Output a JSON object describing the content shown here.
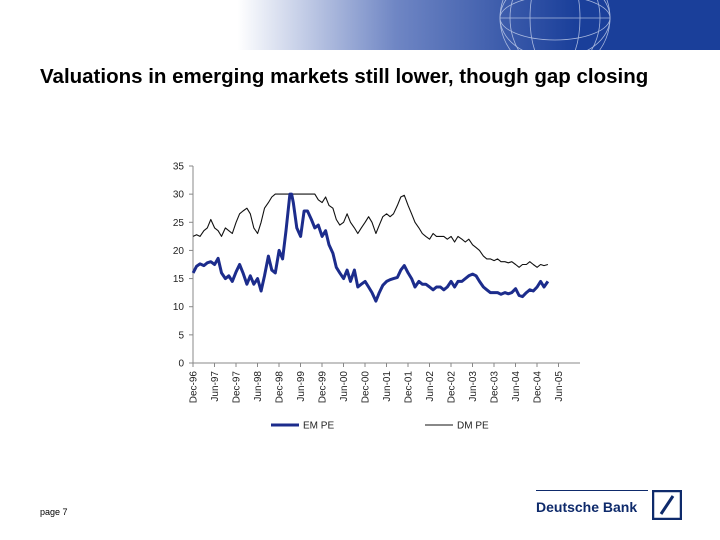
{
  "header": {
    "title": "Valuations in emerging markets still lower, though gap closing",
    "banner_color": "#1a3f9a"
  },
  "footer": {
    "page_label": "page 7",
    "brand": "Deutsche Bank",
    "logo_icon": "deutsche-bank-slash-logo"
  },
  "chart_data": {
    "type": "line",
    "title": "",
    "xlabel": "",
    "ylabel": "",
    "ylim": [
      0,
      35
    ],
    "yticks": [
      0,
      5,
      10,
      15,
      20,
      25,
      30,
      35
    ],
    "xlim": [
      1996.917,
      2005.917
    ],
    "xticks": [
      {
        "label": "Dec-96",
        "x": 1996.917
      },
      {
        "label": "Jun-97",
        "x": 1997.417
      },
      {
        "label": "Dec-97",
        "x": 1997.917
      },
      {
        "label": "Jun-98",
        "x": 1998.417
      },
      {
        "label": "Dec-98",
        "x": 1998.917
      },
      {
        "label": "Jun-99",
        "x": 1999.417
      },
      {
        "label": "Dec-99",
        "x": 1999.917
      },
      {
        "label": "Jun-00",
        "x": 2000.417
      },
      {
        "label": "Dec-00",
        "x": 2000.917
      },
      {
        "label": "Jun-01",
        "x": 2001.417
      },
      {
        "label": "Dec-01",
        "x": 2001.917
      },
      {
        "label": "Jun-02",
        "x": 2002.417
      },
      {
        "label": "Dec-02",
        "x": 2002.917
      },
      {
        "label": "Jun-03",
        "x": 2003.417
      },
      {
        "label": "Dec-03",
        "x": 2003.917
      },
      {
        "label": "Jun-04",
        "x": 2004.417
      },
      {
        "label": "Dec-04",
        "x": 2004.917
      },
      {
        "label": "Jun-05",
        "x": 2005.417
      }
    ],
    "grid": false,
    "legend_position": "bottom",
    "series": [
      {
        "name": "EM PE",
        "color": "#1c2c8c",
        "points": [
          [
            1996.92,
            16.0
          ],
          [
            1997.0,
            17.2
          ],
          [
            1997.08,
            17.6
          ],
          [
            1997.17,
            17.3
          ],
          [
            1997.25,
            17.8
          ],
          [
            1997.33,
            18.0
          ],
          [
            1997.42,
            17.5
          ],
          [
            1997.5,
            18.6
          ],
          [
            1997.58,
            16.0
          ],
          [
            1997.67,
            15.0
          ],
          [
            1997.75,
            15.5
          ],
          [
            1997.83,
            14.5
          ],
          [
            1997.92,
            16.2
          ],
          [
            1998.0,
            17.5
          ],
          [
            1998.08,
            16.0
          ],
          [
            1998.17,
            14.0
          ],
          [
            1998.25,
            15.5
          ],
          [
            1998.33,
            14.0
          ],
          [
            1998.42,
            15.0
          ],
          [
            1998.5,
            12.8
          ],
          [
            1998.58,
            15.5
          ],
          [
            1998.67,
            19.0
          ],
          [
            1998.75,
            16.5
          ],
          [
            1998.83,
            16.0
          ],
          [
            1998.92,
            20.0
          ],
          [
            1999.0,
            18.5
          ],
          [
            1999.08,
            23.5
          ],
          [
            1999.17,
            30.0
          ],
          [
            1999.21,
            30.0
          ],
          [
            1999.25,
            28.5
          ],
          [
            1999.33,
            24.0
          ],
          [
            1999.42,
            22.5
          ],
          [
            1999.5,
            27.0
          ],
          [
            1999.58,
            27.0
          ],
          [
            1999.67,
            25.5
          ],
          [
            1999.75,
            24.0
          ],
          [
            1999.83,
            24.5
          ],
          [
            1999.92,
            22.5
          ],
          [
            2000.0,
            23.5
          ],
          [
            2000.08,
            21.0
          ],
          [
            2000.17,
            19.5
          ],
          [
            2000.25,
            17.0
          ],
          [
            2000.33,
            16.0
          ],
          [
            2000.42,
            15.0
          ],
          [
            2000.5,
            16.5
          ],
          [
            2000.58,
            14.5
          ],
          [
            2000.67,
            16.5
          ],
          [
            2000.75,
            13.5
          ],
          [
            2000.83,
            14.0
          ],
          [
            2000.92,
            14.5
          ],
          [
            2001.0,
            13.5
          ],
          [
            2001.08,
            12.5
          ],
          [
            2001.17,
            11.0
          ],
          [
            2001.25,
            12.5
          ],
          [
            2001.33,
            13.8
          ],
          [
            2001.42,
            14.5
          ],
          [
            2001.5,
            14.8
          ],
          [
            2001.58,
            15.0
          ],
          [
            2001.67,
            15.2
          ],
          [
            2001.75,
            16.5
          ],
          [
            2001.83,
            17.3
          ],
          [
            2001.92,
            16.0
          ],
          [
            2002.0,
            15.0
          ],
          [
            2002.08,
            13.5
          ],
          [
            2002.17,
            14.5
          ],
          [
            2002.25,
            14.0
          ],
          [
            2002.33,
            14.0
          ],
          [
            2002.42,
            13.5
          ],
          [
            2002.5,
            13.0
          ],
          [
            2002.58,
            13.5
          ],
          [
            2002.67,
            13.5
          ],
          [
            2002.75,
            13.0
          ],
          [
            2002.83,
            13.5
          ],
          [
            2002.92,
            14.5
          ],
          [
            2003.0,
            13.5
          ],
          [
            2003.08,
            14.5
          ],
          [
            2003.17,
            14.5
          ],
          [
            2003.25,
            15.0
          ],
          [
            2003.33,
            15.5
          ],
          [
            2003.42,
            15.8
          ],
          [
            2003.5,
            15.5
          ],
          [
            2003.58,
            14.5
          ],
          [
            2003.67,
            13.5
          ],
          [
            2003.75,
            13.0
          ],
          [
            2003.83,
            12.5
          ],
          [
            2003.92,
            12.5
          ],
          [
            2004.0,
            12.5
          ],
          [
            2004.08,
            12.2
          ],
          [
            2004.17,
            12.5
          ],
          [
            2004.25,
            12.3
          ],
          [
            2004.33,
            12.5
          ],
          [
            2004.42,
            13.2
          ],
          [
            2004.5,
            12.0
          ],
          [
            2004.58,
            11.8
          ],
          [
            2004.67,
            12.5
          ],
          [
            2004.75,
            13.0
          ],
          [
            2004.83,
            12.8
          ],
          [
            2004.92,
            13.5
          ],
          [
            2005.0,
            14.5
          ],
          [
            2005.08,
            13.5
          ],
          [
            2005.17,
            14.5
          ]
        ]
      },
      {
        "name": "DM PE",
        "color": "#111111",
        "points": [
          [
            1996.92,
            22.5
          ],
          [
            1997.0,
            22.8
          ],
          [
            1997.08,
            22.5
          ],
          [
            1997.17,
            23.5
          ],
          [
            1997.25,
            24.0
          ],
          [
            1997.33,
            25.5
          ],
          [
            1997.42,
            24.0
          ],
          [
            1997.5,
            23.5
          ],
          [
            1997.58,
            22.5
          ],
          [
            1997.67,
            24.0
          ],
          [
            1997.75,
            23.5
          ],
          [
            1997.83,
            23.0
          ],
          [
            1997.92,
            25.0
          ],
          [
            1998.0,
            26.5
          ],
          [
            1998.08,
            27.0
          ],
          [
            1998.17,
            27.5
          ],
          [
            1998.25,
            26.5
          ],
          [
            1998.33,
            24.0
          ],
          [
            1998.42,
            23.0
          ],
          [
            1998.5,
            25.0
          ],
          [
            1998.58,
            27.5
          ],
          [
            1998.67,
            28.5
          ],
          [
            1998.75,
            29.5
          ],
          [
            1998.83,
            30.0
          ],
          [
            1998.92,
            30.0
          ],
          [
            1999.08,
            30.0
          ],
          [
            1999.25,
            30.0
          ],
          [
            1999.42,
            30.0
          ],
          [
            1999.58,
            30.0
          ],
          [
            1999.75,
            30.0
          ],
          [
            1999.83,
            29.0
          ],
          [
            1999.92,
            28.5
          ],
          [
            2000.0,
            29.5
          ],
          [
            2000.08,
            28.0
          ],
          [
            2000.17,
            27.5
          ],
          [
            2000.25,
            25.5
          ],
          [
            2000.33,
            24.5
          ],
          [
            2000.42,
            25.0
          ],
          [
            2000.5,
            26.5
          ],
          [
            2000.58,
            25.0
          ],
          [
            2000.67,
            24.0
          ],
          [
            2000.75,
            23.0
          ],
          [
            2000.83,
            24.0
          ],
          [
            2000.92,
            25.0
          ],
          [
            2001.0,
            26.0
          ],
          [
            2001.08,
            25.0
          ],
          [
            2001.17,
            23.0
          ],
          [
            2001.25,
            24.5
          ],
          [
            2001.33,
            26.0
          ],
          [
            2001.42,
            26.5
          ],
          [
            2001.5,
            26.0
          ],
          [
            2001.58,
            26.5
          ],
          [
            2001.67,
            28.0
          ],
          [
            2001.75,
            29.5
          ],
          [
            2001.83,
            29.8
          ],
          [
            2001.92,
            28.0
          ],
          [
            2002.0,
            26.5
          ],
          [
            2002.08,
            25.0
          ],
          [
            2002.17,
            24.0
          ],
          [
            2002.25,
            23.0
          ],
          [
            2002.33,
            22.5
          ],
          [
            2002.42,
            22.0
          ],
          [
            2002.5,
            23.0
          ],
          [
            2002.58,
            22.5
          ],
          [
            2002.67,
            22.5
          ],
          [
            2002.75,
            22.5
          ],
          [
            2002.83,
            22.0
          ],
          [
            2002.92,
            22.5
          ],
          [
            2003.0,
            21.5
          ],
          [
            2003.08,
            22.5
          ],
          [
            2003.17,
            22.0
          ],
          [
            2003.25,
            21.5
          ],
          [
            2003.33,
            22.0
          ],
          [
            2003.42,
            21.0
          ],
          [
            2003.5,
            20.5
          ],
          [
            2003.58,
            20.0
          ],
          [
            2003.67,
            19.0
          ],
          [
            2003.75,
            18.5
          ],
          [
            2003.83,
            18.5
          ],
          [
            2003.92,
            18.2
          ],
          [
            2004.0,
            18.5
          ],
          [
            2004.08,
            18.0
          ],
          [
            2004.17,
            18.0
          ],
          [
            2004.25,
            17.8
          ],
          [
            2004.33,
            18.0
          ],
          [
            2004.42,
            17.5
          ],
          [
            2004.5,
            17.0
          ],
          [
            2004.58,
            17.5
          ],
          [
            2004.67,
            17.5
          ],
          [
            2004.75,
            18.0
          ],
          [
            2004.83,
            17.5
          ],
          [
            2004.92,
            17.0
          ],
          [
            2005.0,
            17.5
          ],
          [
            2005.08,
            17.3
          ],
          [
            2005.17,
            17.5
          ]
        ]
      }
    ]
  }
}
